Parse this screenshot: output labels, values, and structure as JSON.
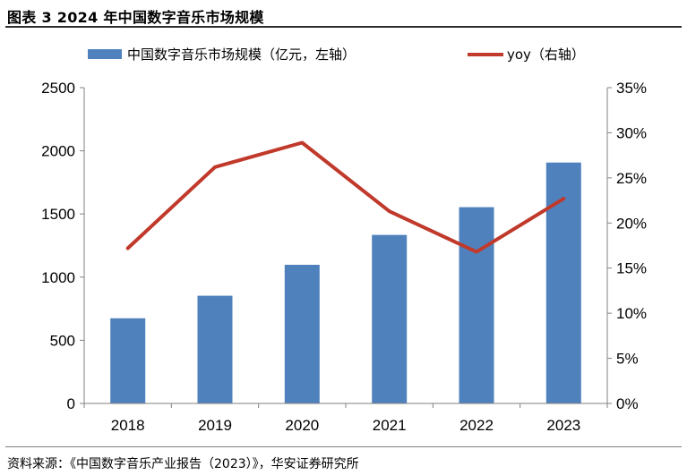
{
  "figure": {
    "title": "图表 3 2024 年中国数字音乐市场规模",
    "source": "资料来源：《中国数字音乐产业报告（2023）》，华安证券研究所"
  },
  "colors": {
    "bar": "#4f81bd",
    "line": "#c0392b",
    "axis": "#808080"
  },
  "chart_data": {
    "type": "bar",
    "categories": [
      "2018",
      "2019",
      "2020",
      "2021",
      "2022",
      "2023"
    ],
    "series": [
      {
        "name": "中国数字音乐市场规模（亿元，左轴）",
        "type": "bar",
        "axis": "left",
        "values": [
          674,
          853,
          1098,
          1334,
          1554,
          1907
        ]
      },
      {
        "name": "yoy（右轴）",
        "type": "line",
        "axis": "right",
        "values": [
          17.2,
          26.2,
          28.9,
          21.3,
          16.8,
          22.7
        ]
      }
    ],
    "ylim_left": [
      0,
      2500
    ],
    "yticks_left": [
      "0",
      "500",
      "1000",
      "1500",
      "2000",
      "2500"
    ],
    "ylim_right": [
      0,
      35
    ],
    "yticks_right": [
      "0%",
      "5%",
      "10%",
      "15%",
      "20%",
      "25%",
      "30%",
      "35%"
    ],
    "legend_position": "top",
    "grid": false
  }
}
